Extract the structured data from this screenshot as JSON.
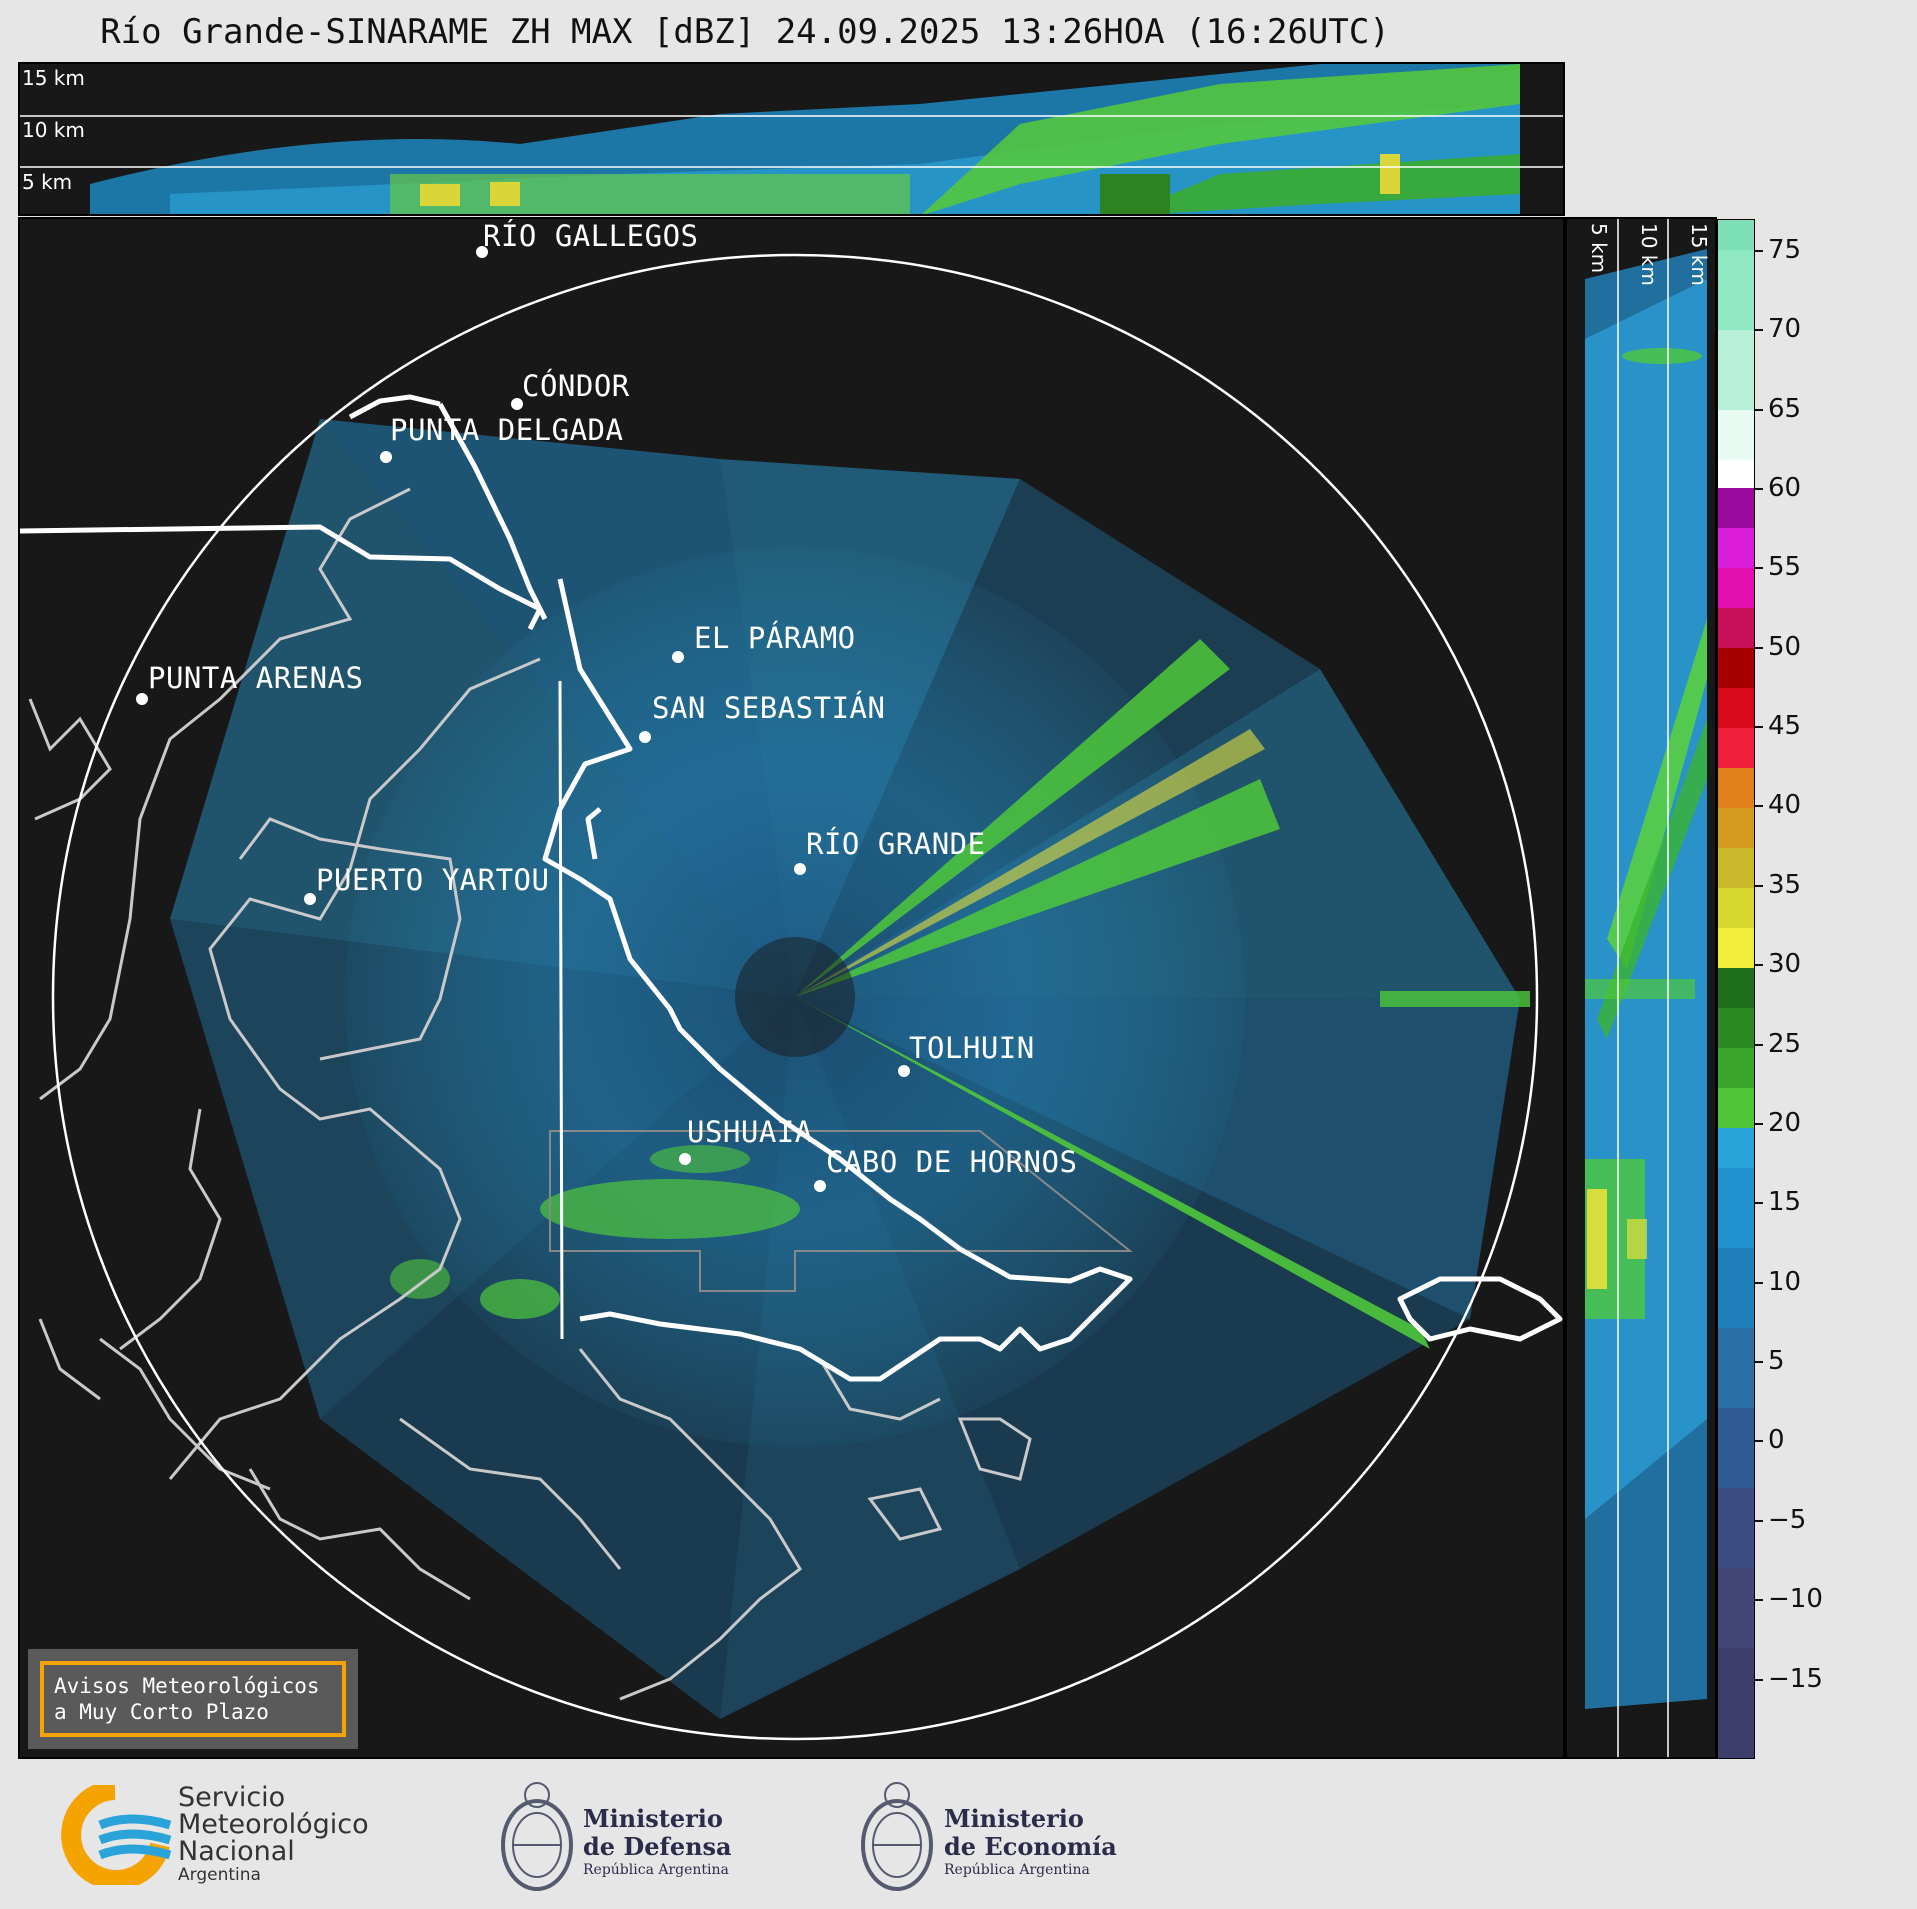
{
  "title": "Río Grande-SINARAME ZH MAX [dBZ] 24.09.2025 13:26HOA (16:26UTC)",
  "top_panel": {
    "altitudes": [
      "15 km",
      "10 km",
      "5 km"
    ]
  },
  "side_panel": {
    "altitudes": [
      "5 km",
      "10 km",
      "15 km"
    ]
  },
  "cities": [
    {
      "name": "RÍO GALLEGOS"
    },
    {
      "name": "CÓNDOR"
    },
    {
      "name": "PUNTA DELGADA"
    },
    {
      "name": "EL PÁRAMO"
    },
    {
      "name": "SAN SEBASTIÁN"
    },
    {
      "name": "PUNTA ARENAS"
    },
    {
      "name": "RÍO GRANDE"
    },
    {
      "name": "PUERTO YARTOU"
    },
    {
      "name": "TOLHUIN"
    },
    {
      "name": "USHUAIA"
    },
    {
      "name": "CABO DE HORNOS"
    }
  ],
  "notice": {
    "line1": "Avisos Meteorológicos",
    "line2": "a Muy Corto Plazo",
    "border_color": "#f5a300"
  },
  "colorbar": {
    "labels": [
      "75",
      "70",
      "65",
      "60",
      "55",
      "50",
      "45",
      "40",
      "35",
      "30",
      "25",
      "20",
      "15",
      "10",
      "5",
      "0",
      "−5",
      "−10",
      "−15"
    ],
    "range": [
      -20,
      77
    ]
  },
  "logos": {
    "smn": {
      "line1": "Servicio",
      "line2": "Meteorológico",
      "line3": "Nacional",
      "line4": "Argentina"
    },
    "defensa": {
      "line1": "Ministerio",
      "line2": "de Defensa",
      "line3": "República Argentina"
    },
    "economia": {
      "line1": "Ministerio",
      "line2": "de Economía",
      "line3": "República Argentina"
    }
  }
}
